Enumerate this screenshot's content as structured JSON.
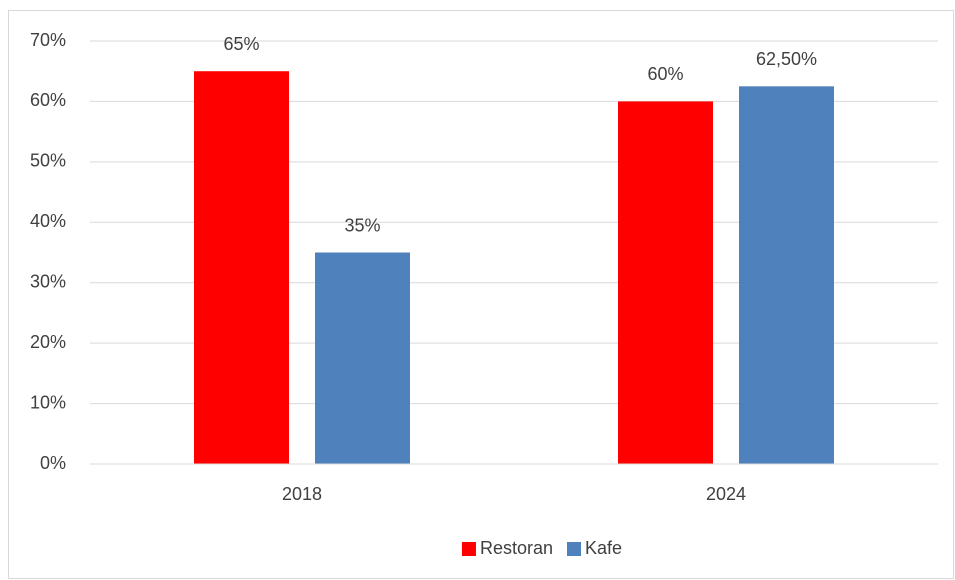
{
  "chart_data": {
    "type": "bar",
    "categories": [
      "2018",
      "2024"
    ],
    "series": [
      {
        "name": "Restoran",
        "color": "#ff0000",
        "values": [
          65,
          60
        ],
        "value_labels": [
          "65%",
          "60%"
        ]
      },
      {
        "name": "Kafe",
        "color": "#4f81bd",
        "values": [
          35,
          62.5
        ],
        "value_labels": [
          "35%",
          "62,50%"
        ]
      }
    ],
    "ylim": [
      0,
      70
    ],
    "yticks": [
      {
        "value": 0,
        "label": "0%"
      },
      {
        "value": 10,
        "label": "10%"
      },
      {
        "value": 20,
        "label": "20%"
      },
      {
        "value": 30,
        "label": "30%"
      },
      {
        "value": 40,
        "label": "40%"
      },
      {
        "value": 50,
        "label": "50%"
      },
      {
        "value": 60,
        "label": "60%"
      },
      {
        "value": 70,
        "label": "70%"
      }
    ],
    "grid": true,
    "legend": "bottom"
  }
}
